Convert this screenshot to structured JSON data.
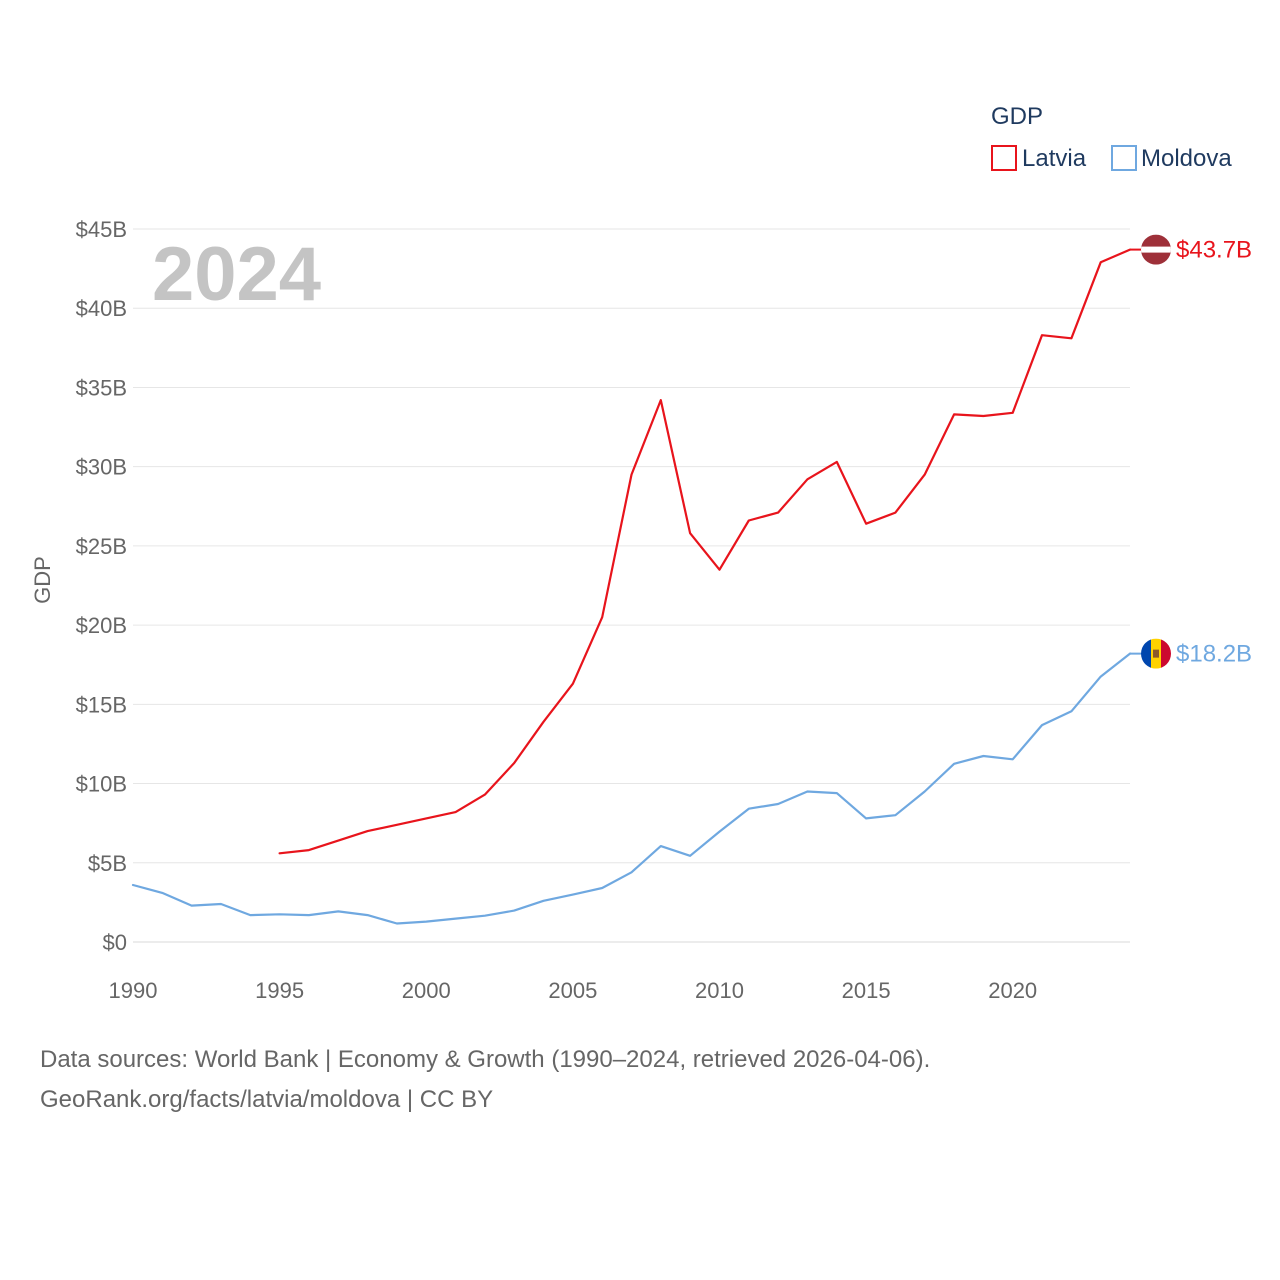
{
  "chart_data": {
    "type": "line",
    "legend_title": "GDP",
    "ylabel": "GDP",
    "year_label": "2024",
    "xlim": [
      1990,
      2024
    ],
    "ylim": [
      0,
      45
    ],
    "x_ticks": [
      1990,
      1995,
      2000,
      2005,
      2010,
      2015,
      2020
    ],
    "x_tick_labels": [
      "1990",
      "1995",
      "2000",
      "2005",
      "2010",
      "2015",
      "2020"
    ],
    "y_ticks": [
      0,
      5,
      10,
      15,
      20,
      25,
      30,
      35,
      40,
      45
    ],
    "y_tick_labels": [
      "$0",
      "$5B",
      "$10B",
      "$15B",
      "$20B",
      "$25B",
      "$30B",
      "$35B",
      "$40B",
      "$45B"
    ],
    "series": [
      {
        "name": "Latvia",
        "color": "#e8141c",
        "end_label": "$43.7B",
        "flag": "latvia-flag",
        "x": [
          1995,
          1996,
          1997,
          1998,
          1999,
          2000,
          2001,
          2002,
          2003,
          2004,
          2005,
          2006,
          2007,
          2008,
          2009,
          2010,
          2011,
          2012,
          2013,
          2014,
          2015,
          2016,
          2017,
          2018,
          2019,
          2020,
          2021,
          2022,
          2023,
          2024
        ],
        "values": [
          5.6,
          5.8,
          6.4,
          7.0,
          7.4,
          7.8,
          8.2,
          9.3,
          11.3,
          13.9,
          16.3,
          20.5,
          29.5,
          34.2,
          25.8,
          23.5,
          26.6,
          27.1,
          29.2,
          30.3,
          26.4,
          27.1,
          29.5,
          33.3,
          33.2,
          33.4,
          38.3,
          38.1,
          42.9,
          43.7
        ]
      },
      {
        "name": "Moldova",
        "color": "#6fa8e0",
        "end_label": "$18.2B",
        "flag": "moldova-flag",
        "x": [
          1990,
          1991,
          1992,
          1993,
          1994,
          1995,
          1996,
          1997,
          1998,
          1999,
          2000,
          2001,
          2002,
          2003,
          2004,
          2005,
          2006,
          2007,
          2008,
          2009,
          2010,
          2011,
          2012,
          2013,
          2014,
          2015,
          2016,
          2017,
          2018,
          2019,
          2020,
          2021,
          2022,
          2023,
          2024
        ],
        "values": [
          3.6,
          3.1,
          2.3,
          2.4,
          1.7,
          1.75,
          1.7,
          1.93,
          1.7,
          1.17,
          1.29,
          1.48,
          1.66,
          1.98,
          2.6,
          2.99,
          3.41,
          4.4,
          6.05,
          5.44,
          6.97,
          8.41,
          8.71,
          9.5,
          9.4,
          7.8,
          8.0,
          9.5,
          11.25,
          11.74,
          11.53,
          13.69,
          14.56,
          16.75,
          18.2
        ]
      }
    ]
  },
  "source": {
    "line1": "Data sources: World Bank | Economy & Growth (1990–2024, retrieved 2026-04-06).",
    "line2": "GeoRank.org/facts/latvia/moldova | CC BY"
  }
}
